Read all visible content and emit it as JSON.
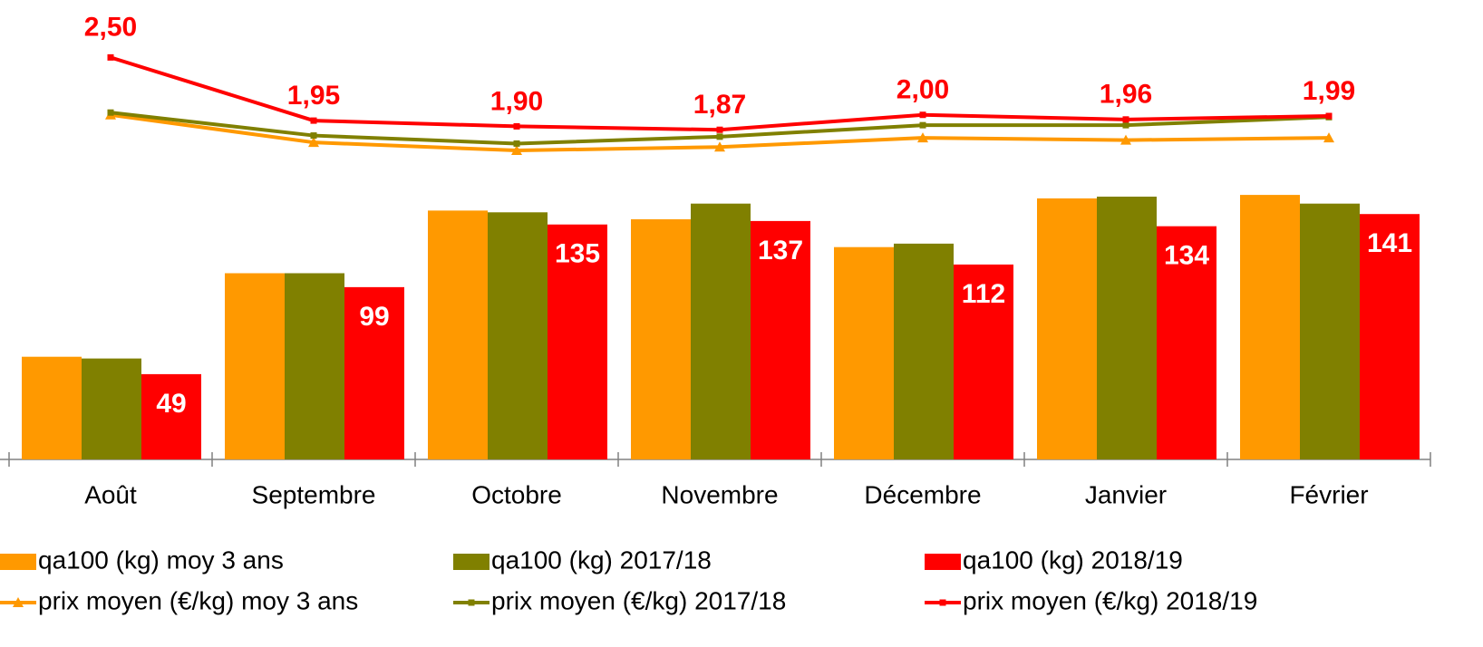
{
  "chart_data": {
    "type": "bar",
    "categories": [
      "Août",
      "Septembre",
      "Octobre",
      "Novembre",
      "Décembre",
      "Janvier",
      "Février"
    ],
    "ylim": [
      0,
      264
    ],
    "y2lim": [
      -1,
      3
    ],
    "series": [
      {
        "name": "qa100 (kg) moy 3 ans",
        "type": "bar",
        "color": "#ff9900",
        "values": [
          59,
          107,
          143,
          138,
          122,
          150,
          152
        ]
      },
      {
        "name": "qa100 (kg) 2017/18",
        "type": "bar",
        "color": "#808000",
        "values": [
          58,
          107,
          142,
          147,
          124,
          151,
          147
        ]
      },
      {
        "name": "qa100 (kg) 2018/19",
        "type": "bar",
        "color": "#ff0000",
        "data_labels": true,
        "values": [
          49,
          99,
          135,
          137,
          112,
          134,
          141
        ]
      },
      {
        "name": "prix moyen (€/kg) moy 3 ans",
        "type": "line",
        "axis": "y2",
        "marker": "triangle",
        "color": "#ff9900",
        "values": [
          2.0,
          1.76,
          1.69,
          1.72,
          1.8,
          1.78,
          1.8
        ]
      },
      {
        "name": "prix moyen (€/kg) 2017/18",
        "type": "line",
        "axis": "y2",
        "marker": "square",
        "color": "#808000",
        "values": [
          2.02,
          1.82,
          1.75,
          1.81,
          1.91,
          1.91,
          1.98
        ]
      },
      {
        "name": "prix moyen (€/kg) 2018/19",
        "type": "line",
        "axis": "y2",
        "marker": "square",
        "color": "#ff0000",
        "data_labels": true,
        "values": [
          2.5,
          1.95,
          1.9,
          1.87,
          2.0,
          1.96,
          1.99
        ],
        "value_labels": [
          "2,50",
          "1,95",
          "1,90",
          "1,87",
          "2,00",
          "1,96",
          "1,99"
        ]
      }
    ]
  }
}
